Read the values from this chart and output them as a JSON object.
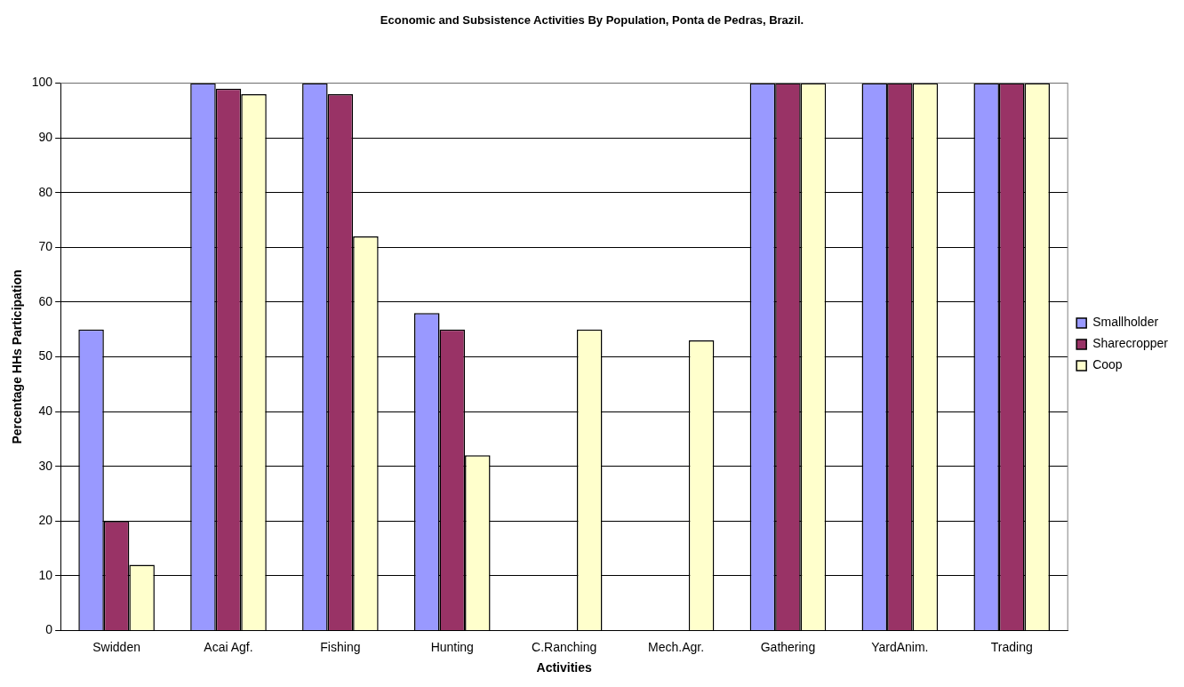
{
  "chart_data": {
    "type": "bar",
    "title": "Economic and Subsistence Activities By Population, Ponta de Pedras, Brazil.",
    "xlabel": "Activities",
    "ylabel": "Percentage HHs Participation",
    "categories": [
      "Swidden",
      "Acai Agf.",
      "Fishing",
      "Hunting",
      "C.Ranching",
      "Mech.Agr.",
      "Gathering",
      "YardAnim.",
      "Trading"
    ],
    "series": [
      {
        "name": "Smallholder",
        "color": "#9999ff",
        "values": [
          55,
          100,
          100,
          58,
          0,
          0,
          100,
          100,
          100
        ]
      },
      {
        "name": "Sharecropper",
        "color": "#993366",
        "values": [
          20,
          99,
          98,
          55,
          0,
          0,
          100,
          100,
          100
        ]
      },
      {
        "name": "Coop",
        "color": "#ffffcc",
        "values": [
          12,
          98,
          72,
          32,
          55,
          53,
          100,
          100,
          100
        ]
      }
    ],
    "ylim": [
      0,
      100
    ],
    "yticks": [
      0,
      10,
      20,
      30,
      40,
      50,
      60,
      70,
      80,
      90,
      100
    ],
    "grid": "y",
    "legend": "right"
  }
}
